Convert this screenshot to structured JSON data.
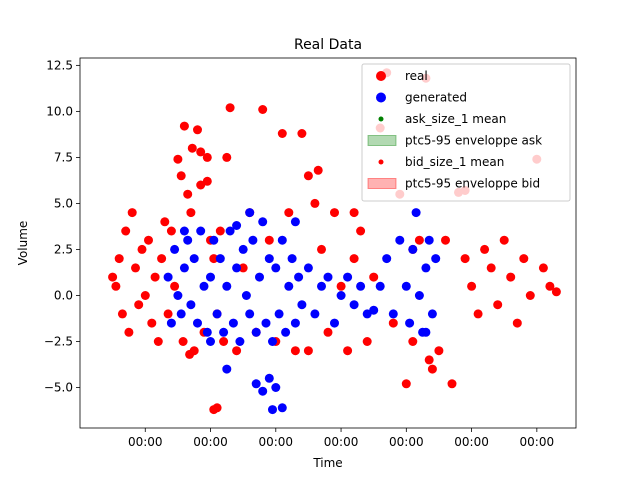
{
  "chart_data": {
    "type": "scatter",
    "title": "Real Data",
    "xlabel": "Time",
    "ylabel": "Volume",
    "xlim": [
      0,
      7.6
    ],
    "ylim": [
      -7.2,
      12.9
    ],
    "x_ticks": [
      {
        "v": 1,
        "label": "00:00"
      },
      {
        "v": 2,
        "label": "00:00"
      },
      {
        "v": 3,
        "label": "00:00"
      },
      {
        "v": 4,
        "label": "00:00"
      },
      {
        "v": 5,
        "label": "00:00"
      },
      {
        "v": 6,
        "label": "00:00"
      },
      {
        "v": 7,
        "label": "00:00"
      }
    ],
    "y_ticks": [
      {
        "v": -5.0,
        "label": "−5.0"
      },
      {
        "v": -2.5,
        "label": "−2.5"
      },
      {
        "v": 0.0,
        "label": "0.0"
      },
      {
        "v": 2.5,
        "label": "2.5"
      },
      {
        "v": 5.0,
        "label": "5.0"
      },
      {
        "v": 7.5,
        "label": "7.5"
      },
      {
        "v": 10.0,
        "label": "10.0"
      },
      {
        "v": 12.5,
        "label": "12.5"
      }
    ],
    "legend_position": "top-right",
    "legend": [
      {
        "label": "real",
        "kind": "marker",
        "color": "#ff0000",
        "size": "large"
      },
      {
        "label": "generated",
        "kind": "marker",
        "color": "#0000ff",
        "size": "large"
      },
      {
        "label": "ask_size_1 mean",
        "kind": "marker",
        "color": "#008000",
        "size": "small"
      },
      {
        "label": "ptc5-95 enveloppe ask",
        "kind": "patch",
        "color": "#008000"
      },
      {
        "label": "bid_size_1 mean",
        "kind": "marker",
        "color": "#ff0000",
        "size": "small"
      },
      {
        "label": "ptc5-95 enveloppe bid",
        "kind": "patch",
        "color": "#ff0000"
      }
    ],
    "series": [
      {
        "name": "real",
        "color": "#ff0000",
        "points": [
          [
            0.5,
            1.0
          ],
          [
            0.55,
            0.5
          ],
          [
            0.6,
            2.0
          ],
          [
            0.65,
            -1.0
          ],
          [
            0.7,
            3.5
          ],
          [
            0.75,
            -2.0
          ],
          [
            0.8,
            4.5
          ],
          [
            0.85,
            1.5
          ],
          [
            0.9,
            -0.5
          ],
          [
            0.95,
            2.5
          ],
          [
            1.0,
            0.0
          ],
          [
            1.05,
            3.0
          ],
          [
            1.1,
            -1.5
          ],
          [
            1.15,
            1.0
          ],
          [
            1.2,
            -2.5
          ],
          [
            1.25,
            2.0
          ],
          [
            1.3,
            4.0
          ],
          [
            1.35,
            -1.0
          ],
          [
            1.4,
            3.5
          ],
          [
            1.45,
            0.5
          ],
          [
            1.5,
            7.4
          ],
          [
            1.55,
            6.5
          ],
          [
            1.6,
            9.2
          ],
          [
            1.65,
            5.5
          ],
          [
            1.7,
            4.5
          ],
          [
            1.75,
            -3.0
          ],
          [
            1.8,
            9.0
          ],
          [
            1.85,
            6.0
          ],
          [
            1.9,
            -2.0
          ],
          [
            1.95,
            7.5
          ],
          [
            2.0,
            3.0
          ],
          [
            2.05,
            2.0
          ],
          [
            1.58,
            -2.5
          ],
          [
            1.68,
            -3.2
          ],
          [
            1.72,
            8.0
          ],
          [
            1.85,
            7.8
          ],
          [
            2.1,
            -1.0
          ],
          [
            2.15,
            3.5
          ],
          [
            2.2,
            -2.5
          ],
          [
            2.3,
            10.2
          ],
          [
            2.4,
            -3.0
          ],
          [
            2.5,
            1.5
          ],
          [
            2.6,
            4.5
          ],
          [
            2.7,
            -2.0
          ],
          [
            2.8,
            10.1
          ],
          [
            2.9,
            3.0
          ],
          [
            3.0,
            -2.5
          ],
          [
            3.1,
            8.8
          ],
          [
            3.2,
            4.5
          ],
          [
            3.3,
            -3.0
          ],
          [
            3.4,
            8.8
          ],
          [
            3.5,
            6.5
          ],
          [
            3.6,
            5.0
          ],
          [
            3.7,
            2.5
          ],
          [
            3.8,
            -2.0
          ],
          [
            3.9,
            4.5
          ],
          [
            4.0,
            0.5
          ],
          [
            4.1,
            -3.0
          ],
          [
            4.2,
            2.0
          ],
          [
            4.3,
            3.5
          ],
          [
            4.4,
            -2.5
          ],
          [
            4.5,
            1.0
          ],
          [
            4.6,
            9.1
          ],
          [
            4.7,
            12.1
          ],
          [
            4.8,
            -1.5
          ],
          [
            4.9,
            5.5
          ],
          [
            5.0,
            -4.8
          ],
          [
            5.1,
            -2.5
          ],
          [
            5.2,
            3.0
          ],
          [
            5.3,
            11.8
          ],
          [
            5.4,
            -4.0
          ],
          [
            5.5,
            -3.0
          ],
          [
            5.6,
            3.0
          ],
          [
            5.7,
            -4.8
          ],
          [
            5.8,
            5.6
          ],
          [
            5.9,
            2.0
          ],
          [
            6.0,
            0.5
          ],
          [
            6.1,
            -1.0
          ],
          [
            6.2,
            2.5
          ],
          [
            6.3,
            1.5
          ],
          [
            6.4,
            -0.5
          ],
          [
            6.5,
            3.0
          ],
          [
            6.6,
            1.0
          ],
          [
            6.7,
            -1.5
          ],
          [
            6.8,
            2.0
          ],
          [
            6.9,
            0.0
          ],
          [
            7.0,
            7.4
          ],
          [
            7.1,
            1.5
          ],
          [
            7.2,
            0.5
          ],
          [
            7.3,
            0.2
          ],
          [
            2.05,
            -6.2
          ],
          [
            2.1,
            -6.1
          ],
          [
            3.5,
            -3.0
          ],
          [
            5.9,
            5.7
          ],
          [
            5.35,
            -3.5
          ],
          [
            5.1,
            2.5
          ],
          [
            4.2,
            4.5
          ],
          [
            2.25,
            7.5
          ],
          [
            1.95,
            6.2
          ],
          [
            3.65,
            6.8
          ]
        ]
      },
      {
        "name": "generated",
        "color": "#0000ff",
        "points": [
          [
            1.35,
            1.0
          ],
          [
            1.4,
            -1.5
          ],
          [
            1.45,
            2.5
          ],
          [
            1.5,
            0.0
          ],
          [
            1.55,
            -1.0
          ],
          [
            1.6,
            1.5
          ],
          [
            1.65,
            3.0
          ],
          [
            1.7,
            -0.5
          ],
          [
            1.75,
            2.0
          ],
          [
            1.8,
            -1.5
          ],
          [
            1.85,
            3.5
          ],
          [
            1.9,
            0.5
          ],
          [
            1.95,
            -2.0
          ],
          [
            2.0,
            1.0
          ],
          [
            2.05,
            3.0
          ],
          [
            2.1,
            -1.0
          ],
          [
            2.15,
            2.0
          ],
          [
            2.2,
            -2.0
          ],
          [
            2.25,
            0.5
          ],
          [
            2.3,
            3.5
          ],
          [
            2.35,
            -1.5
          ],
          [
            2.4,
            1.5
          ],
          [
            2.45,
            -2.5
          ],
          [
            2.5,
            2.5
          ],
          [
            2.55,
            0.0
          ],
          [
            2.6,
            -1.0
          ],
          [
            2.65,
            3.0
          ],
          [
            2.7,
            -2.0
          ],
          [
            2.75,
            1.0
          ],
          [
            2.8,
            4.0
          ],
          [
            2.85,
            -1.5
          ],
          [
            2.9,
            2.0
          ],
          [
            2.95,
            -2.5
          ],
          [
            3.0,
            1.5
          ],
          [
            3.05,
            -1.0
          ],
          [
            3.1,
            3.0
          ],
          [
            3.15,
            -2.0
          ],
          [
            3.2,
            0.5
          ],
          [
            3.25,
            2.0
          ],
          [
            3.3,
            -1.5
          ],
          [
            3.35,
            1.0
          ],
          [
            3.4,
            -0.5
          ],
          [
            3.5,
            1.5
          ],
          [
            3.6,
            -1.0
          ],
          [
            3.7,
            0.5
          ],
          [
            3.8,
            1.0
          ],
          [
            3.9,
            -1.5
          ],
          [
            4.0,
            0.0
          ],
          [
            4.1,
            1.0
          ],
          [
            4.2,
            -0.5
          ],
          [
            4.3,
            0.5
          ],
          [
            4.4,
            -1.0
          ],
          [
            4.6,
            0.5
          ],
          [
            4.7,
            2.0
          ],
          [
            4.8,
            -1.0
          ],
          [
            4.9,
            3.0
          ],
          [
            5.0,
            0.5
          ],
          [
            5.05,
            -1.5
          ],
          [
            5.1,
            2.5
          ],
          [
            5.15,
            4.5
          ],
          [
            5.2,
            0.0
          ],
          [
            5.25,
            -2.0
          ],
          [
            5.3,
            1.5
          ],
          [
            5.35,
            3.0
          ],
          [
            5.4,
            -1.0
          ],
          [
            5.45,
            2.0
          ],
          [
            2.7,
            -4.8
          ],
          [
            2.8,
            -5.2
          ],
          [
            2.9,
            -4.5
          ],
          [
            2.95,
            -6.2
          ],
          [
            3.1,
            -6.1
          ],
          [
            2.25,
            -4.0
          ],
          [
            3.0,
            -5.0
          ],
          [
            3.3,
            4.0
          ],
          [
            2.6,
            4.5
          ],
          [
            2.0,
            -2.5
          ],
          [
            1.6,
            3.5
          ],
          [
            2.4,
            3.8
          ],
          [
            5.3,
            -2.0
          ],
          [
            4.5,
            -0.8
          ]
        ]
      }
    ]
  }
}
